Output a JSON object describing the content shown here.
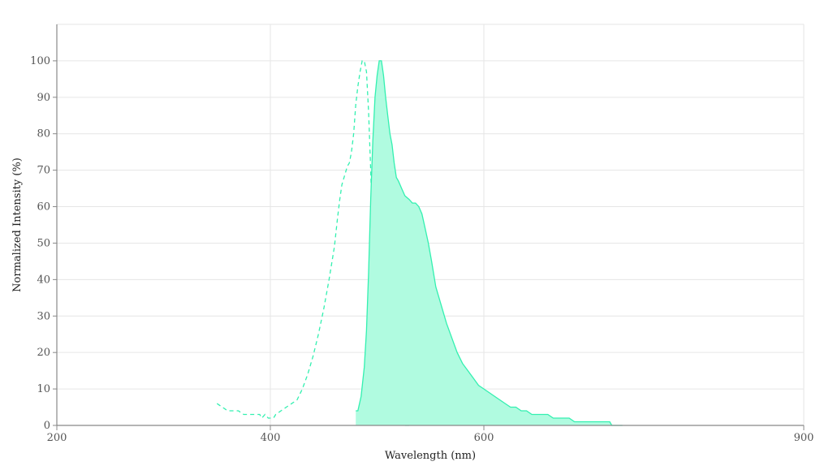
{
  "chart_data": {
    "type": "area",
    "xlabel": "Wavelength (nm)",
    "ylabel": "Normalized Intensity (%)",
    "xlim": [
      200,
      900
    ],
    "ylim": [
      0,
      110
    ],
    "x_ticks": [
      200,
      400,
      600,
      900
    ],
    "y_ticks": [
      0,
      10,
      20,
      30,
      40,
      50,
      60,
      70,
      80,
      90,
      100
    ],
    "grid": true,
    "colors": {
      "series": "#33f0b0",
      "fill": "#b0fbe0",
      "axis": "#888888",
      "grid": "#e6e6e6"
    },
    "series": [
      {
        "style": "dashed",
        "fill": false,
        "x": [
          350,
          355,
          360,
          365,
          370,
          375,
          380,
          385,
          390,
          392,
          395,
          398,
          400,
          403,
          405,
          410,
          415,
          420,
          425,
          430,
          435,
          440,
          445,
          450,
          455,
          460,
          463,
          465,
          467,
          470,
          472,
          474,
          476,
          478,
          480,
          482,
          484,
          486,
          488,
          490,
          492,
          494,
          496,
          498,
          500,
          502,
          505,
          508,
          510,
          515,
          520,
          525,
          530
        ],
        "y": [
          6,
          5,
          4,
          4,
          4,
          3,
          3,
          3,
          3,
          2,
          3,
          2,
          2,
          2,
          3,
          4,
          5,
          6,
          7,
          10,
          14,
          19,
          25,
          32,
          40,
          49,
          57,
          62,
          66,
          69,
          71,
          72,
          75,
          80,
          88,
          93,
          97,
          100,
          100,
          97,
          86,
          70,
          50,
          35,
          25,
          19,
          12,
          8,
          5,
          2,
          1,
          0,
          0
        ]
      },
      {
        "style": "solid",
        "fill": true,
        "x": [
          480,
          482,
          485,
          488,
          490,
          492,
          494,
          496,
          498,
          500,
          502,
          504,
          506,
          508,
          510,
          512,
          514,
          516,
          518,
          520,
          523,
          526,
          530,
          533,
          536,
          539,
          542,
          545,
          548,
          551,
          555,
          560,
          565,
          570,
          575,
          580,
          585,
          590,
          595,
          600,
          605,
          610,
          615,
          620,
          625,
          630,
          635,
          640,
          645,
          650,
          655,
          660,
          665,
          670,
          675,
          680,
          685,
          690,
          695,
          700,
          705,
          710,
          715,
          717,
          718,
          720,
          725,
          730
        ],
        "y": [
          4,
          4,
          8,
          16,
          26,
          42,
          62,
          78,
          90,
          96,
          100,
          100,
          96,
          90,
          85,
          80,
          77,
          72,
          68,
          67,
          65,
          63,
          62,
          61,
          61,
          60,
          58,
          54,
          50,
          45,
          38,
          33,
          28,
          24,
          20,
          17,
          15,
          13,
          11,
          10,
          9,
          8,
          7,
          6,
          5,
          5,
          4,
          4,
          3,
          3,
          3,
          3,
          2,
          2,
          2,
          2,
          1,
          1,
          1,
          1,
          1,
          1,
          1,
          1,
          1,
          0,
          0,
          0
        ]
      }
    ]
  }
}
